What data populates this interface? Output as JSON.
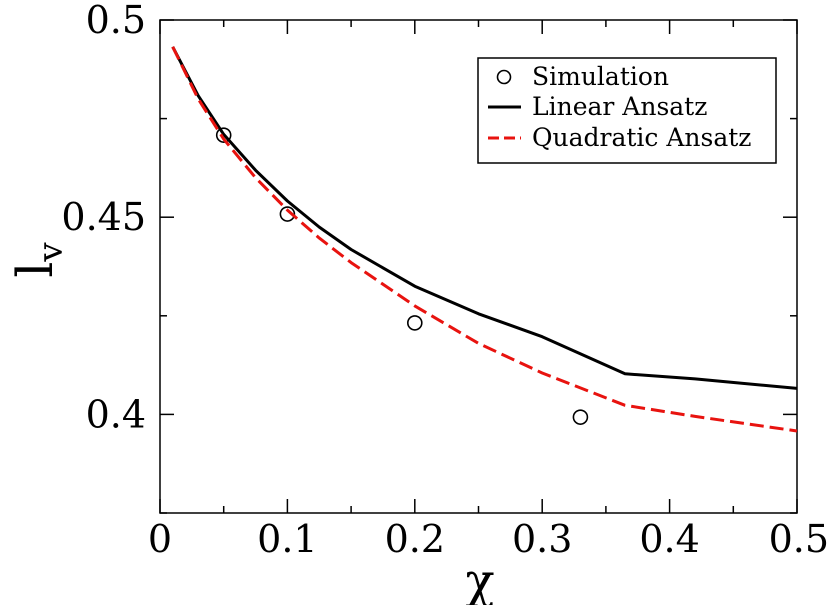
{
  "chart_data": {
    "type": "line",
    "xlabel": "χ",
    "ylabel": {
      "base": "l",
      "subscript": "v"
    },
    "xlim": [
      0,
      0.5
    ],
    "ylim": [
      0.375,
      0.5
    ],
    "xticks": [
      0,
      0.1,
      0.2,
      0.3,
      0.4,
      0.5
    ],
    "xtick_labels": [
      "0",
      "0.1",
      "0.2",
      "0.3",
      "0.4",
      "0.5"
    ],
    "yticks": [
      0.4,
      0.45,
      0.5
    ],
    "ytick_labels": [
      "0.4",
      "0.45",
      "0.5"
    ],
    "legend_position": "top-right",
    "series": [
      {
        "name": "Simulation",
        "style": "circle-markers",
        "color": "#000000",
        "x": [
          0.05,
          0.1,
          0.2,
          0.33
        ],
        "y": [
          0.4708,
          0.4508,
          0.4232,
          0.3993
        ]
      },
      {
        "name": "Linear Ansatz",
        "style": "solid",
        "color": "#000000",
        "x": [
          0.01,
          0.03,
          0.05,
          0.075,
          0.1,
          0.125,
          0.15,
          0.2,
          0.25,
          0.3,
          0.365,
          0.42,
          0.5
        ],
        "y": [
          0.4932,
          0.4808,
          0.471,
          0.4619,
          0.4541,
          0.4475,
          0.4418,
          0.4325,
          0.4255,
          0.4197,
          0.4103,
          0.409,
          0.4066
        ]
      },
      {
        "name": "Quadratic Ansatz",
        "style": "dashed",
        "color": "#e8130f",
        "x": [
          0.01,
          0.03,
          0.05,
          0.075,
          0.1,
          0.125,
          0.15,
          0.2,
          0.25,
          0.3,
          0.365,
          0.42,
          0.5
        ],
        "y": [
          0.4932,
          0.48,
          0.4698,
          0.46,
          0.4518,
          0.4447,
          0.4385,
          0.4275,
          0.418,
          0.4105,
          0.4023,
          0.3995,
          0.3958
        ]
      }
    ]
  }
}
